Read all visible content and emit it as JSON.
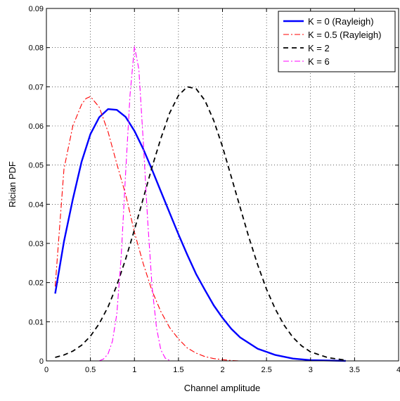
{
  "chart_data": {
    "type": "line",
    "title": "",
    "xlabel": "Channel amplitude",
    "ylabel": "Rician PDF",
    "xlim": [
      0,
      4
    ],
    "ylim": [
      0,
      0.09
    ],
    "xticks": [
      "0",
      "0.5",
      "1",
      "1.5",
      "2",
      "2.5",
      "3",
      "3.5",
      "4"
    ],
    "yticks": [
      "0",
      "0.01",
      "0.02",
      "0.03",
      "0.04",
      "0.05",
      "0.06",
      "0.07",
      "0.08",
      "0.09"
    ],
    "grid": true,
    "legend_position": "top-right",
    "series": [
      {
        "name": "K = 0 (Rayleigh)",
        "color": "#0000ff",
        "dash": "solid",
        "x": [
          0.1,
          0.2,
          0.3,
          0.4,
          0.5,
          0.6,
          0.7,
          0.8,
          0.9,
          1.0,
          1.1,
          1.2,
          1.3,
          1.4,
          1.5,
          1.6,
          1.7,
          1.8,
          1.9,
          2.0,
          2.1,
          2.2,
          2.4,
          2.6,
          2.8,
          3.0,
          3.2,
          3.4
        ],
        "y": [
          0.0172,
          0.0305,
          0.0413,
          0.0509,
          0.0579,
          0.0622,
          0.0643,
          0.0641,
          0.0623,
          0.0587,
          0.0541,
          0.0488,
          0.0433,
          0.0378,
          0.0323,
          0.0271,
          0.0222,
          0.0181,
          0.0142,
          0.011,
          0.0082,
          0.006,
          0.0031,
          0.0015,
          0.0006,
          0.0002,
          0.0001,
          0.0
        ]
      },
      {
        "name": "K = 0.5 (Rayleigh)",
        "color": "#ff0000",
        "dash": "dashdot",
        "x": [
          0.1,
          0.2,
          0.3,
          0.4,
          0.45,
          0.5,
          0.6,
          0.7,
          0.8,
          0.9,
          1.0,
          1.1,
          1.2,
          1.3,
          1.4,
          1.5,
          1.6,
          1.7,
          1.8,
          1.9,
          2.0,
          2.1,
          2.2,
          2.3
        ],
        "y": [
          0.019,
          0.049,
          0.06,
          0.0655,
          0.067,
          0.0675,
          0.0648,
          0.0585,
          0.0503,
          0.0425,
          0.0328,
          0.0248,
          0.0179,
          0.0126,
          0.0085,
          0.0056,
          0.0033,
          0.002,
          0.0011,
          0.0006,
          0.0003,
          0.0001,
          0.0,
          0.0
        ]
      },
      {
        "name": "K = 2",
        "color": "#000000",
        "dash": "dashed",
        "x": [
          0.1,
          0.2,
          0.3,
          0.4,
          0.5,
          0.6,
          0.7,
          0.8,
          0.9,
          1.0,
          1.1,
          1.2,
          1.3,
          1.4,
          1.5,
          1.6,
          1.7,
          1.8,
          1.9,
          2.0,
          2.1,
          2.2,
          2.3,
          2.4,
          2.5,
          2.6,
          2.7,
          2.8,
          2.9,
          3.0,
          3.2,
          3.4
        ],
        "y": [
          0.0009,
          0.0015,
          0.0025,
          0.004,
          0.0063,
          0.0095,
          0.0138,
          0.0193,
          0.026,
          0.0335,
          0.0415,
          0.0495,
          0.0568,
          0.0633,
          0.0678,
          0.07,
          0.0695,
          0.0665,
          0.0614,
          0.0547,
          0.047,
          0.0392,
          0.0315,
          0.0245,
          0.0183,
          0.0132,
          0.0091,
          0.006,
          0.0038,
          0.0023,
          0.0008,
          0.0002
        ]
      },
      {
        "name": "K = 6",
        "color": "#ff00ff",
        "dash": "dashdot",
        "x": [
          0.6,
          0.65,
          0.7,
          0.75,
          0.8,
          0.85,
          0.9,
          0.95,
          1.0,
          1.05,
          1.1,
          1.15,
          1.2,
          1.25,
          1.3,
          1.35,
          1.4
        ],
        "y": [
          0.0,
          0.0005,
          0.0018,
          0.005,
          0.012,
          0.027,
          0.048,
          0.068,
          0.0803,
          0.0745,
          0.056,
          0.036,
          0.019,
          0.0085,
          0.0028,
          0.0007,
          0.0001
        ]
      }
    ]
  }
}
